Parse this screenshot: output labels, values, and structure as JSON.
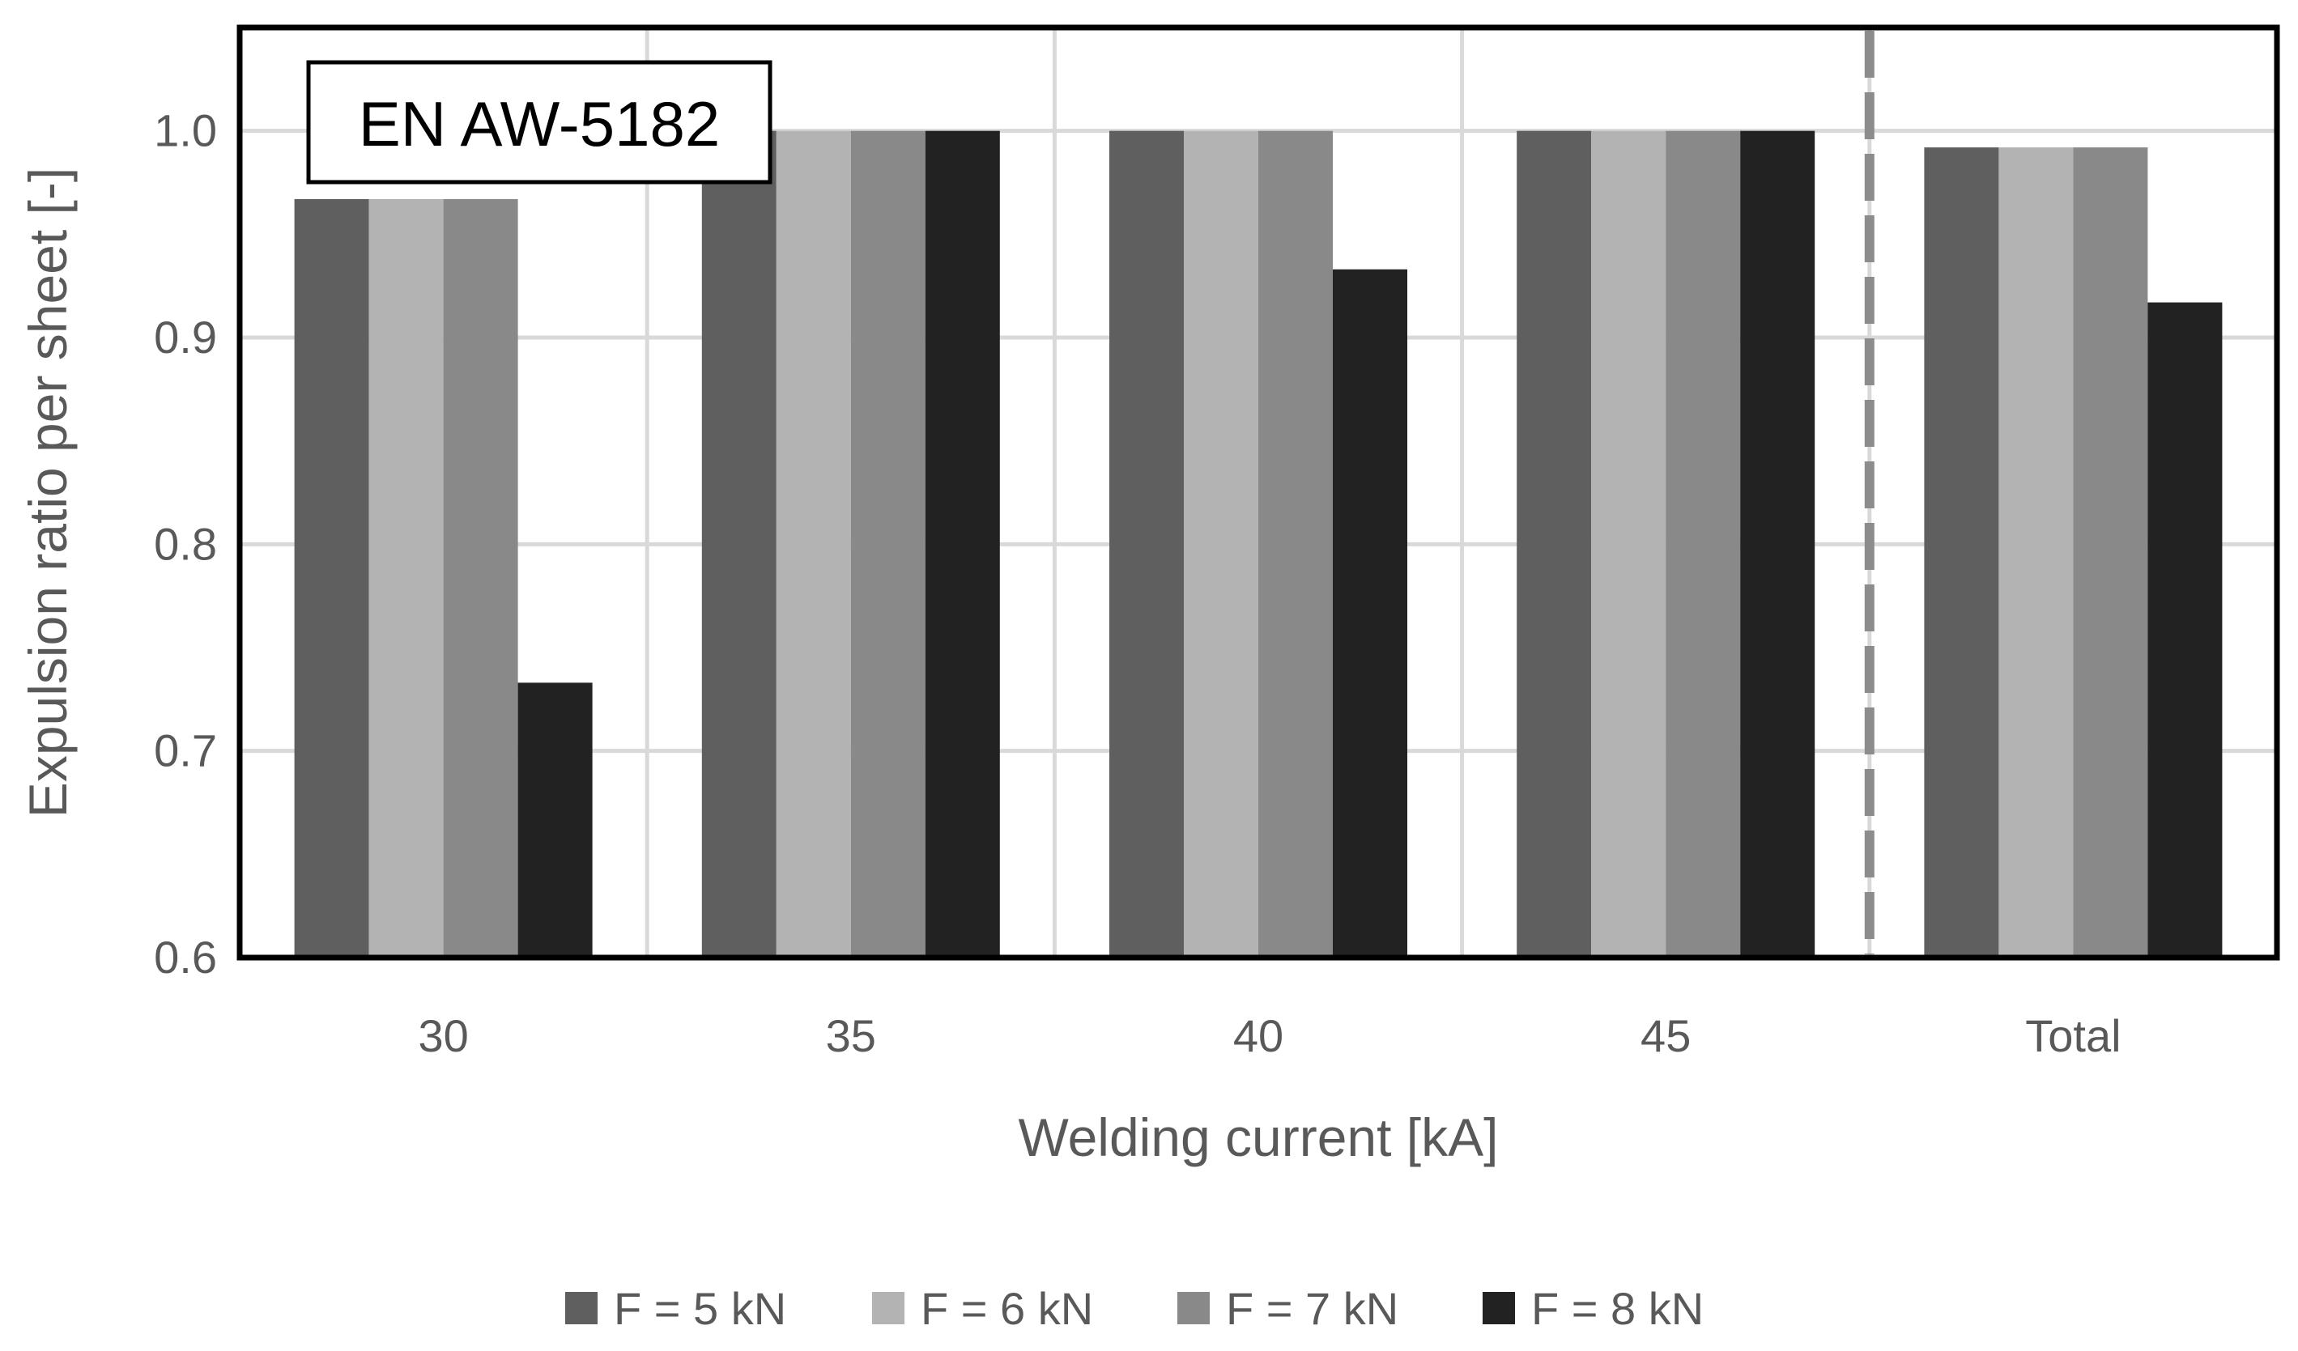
{
  "chart_data": {
    "type": "bar",
    "title": "",
    "annotation": "EN AW-5182",
    "xlabel": "Welding current [kA]",
    "ylabel": "Expulsion ratio per sheet [-]",
    "categories": [
      "30",
      "35",
      "40",
      "45",
      "Total"
    ],
    "ylim": [
      0.6,
      1.05
    ],
    "yticks": [
      "0.6",
      "0.7",
      "0.8",
      "0.9",
      "1.0"
    ],
    "ytick_values": [
      0.6,
      0.7,
      0.8,
      0.9,
      1.0
    ],
    "grid": true,
    "separator_before": "Total",
    "legend_position": "bottom",
    "series": [
      {
        "name": "F = 5 kN",
        "color": "#5f5f5f",
        "values": [
          0.967,
          1.0,
          1.0,
          1.0,
          0.992
        ]
      },
      {
        "name": "F = 6 kN",
        "color": "#b3b3b3",
        "values": [
          0.967,
          1.0,
          1.0,
          1.0,
          0.992
        ]
      },
      {
        "name": "F = 7 kN",
        "color": "#898989",
        "values": [
          0.967,
          1.0,
          1.0,
          1.0,
          0.992
        ]
      },
      {
        "name": "F = 8 kN",
        "color": "#222222",
        "values": [
          0.733,
          1.0,
          0.933,
          1.0,
          0.917
        ]
      }
    ]
  }
}
